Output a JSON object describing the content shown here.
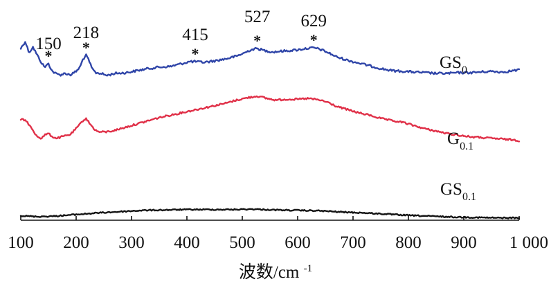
{
  "chart_data": {
    "type": "line",
    "xlabel": "波数/cm",
    "xlabel_sup": "-1",
    "xlim": [
      100,
      1000
    ],
    "grid": false,
    "x_ticks": [
      {
        "value": 100,
        "label": "100"
      },
      {
        "value": 200,
        "label": "200"
      },
      {
        "value": 300,
        "label": "300"
      },
      {
        "value": 400,
        "label": "400"
      },
      {
        "value": 500,
        "label": "500"
      },
      {
        "value": 600,
        "label": "600"
      },
      {
        "value": 700,
        "label": "700"
      },
      {
        "value": 800,
        "label": "800"
      },
      {
        "value": 900,
        "label": "900"
      },
      {
        "value": 1000,
        "label": "1 000"
      }
    ],
    "peaks": [
      {
        "x": 150,
        "label": "150",
        "star": "*"
      },
      {
        "x": 218,
        "label": "218",
        "star": "*"
      },
      {
        "x": 415,
        "label": "415",
        "star": "*"
      },
      {
        "x": 527,
        "label": "527",
        "star": "*"
      },
      {
        "x": 629,
        "label": "629",
        "star": "*"
      }
    ],
    "series": [
      {
        "label_main": "GS",
        "label_sub": "0",
        "color": "#2f45a8",
        "points": [
          [
            100,
            0.6
          ],
          [
            108,
            0.7
          ],
          [
            115,
            0.54
          ],
          [
            122,
            0.62
          ],
          [
            130,
            0.5
          ],
          [
            137,
            0.4
          ],
          [
            143,
            0.33
          ],
          [
            150,
            0.38
          ],
          [
            157,
            0.27
          ],
          [
            165,
            0.23
          ],
          [
            172,
            0.22
          ],
          [
            180,
            0.24
          ],
          [
            190,
            0.22
          ],
          [
            200,
            0.27
          ],
          [
            207,
            0.33
          ],
          [
            212,
            0.44
          ],
          [
            218,
            0.5
          ],
          [
            223,
            0.43
          ],
          [
            228,
            0.32
          ],
          [
            235,
            0.25
          ],
          [
            245,
            0.24
          ],
          [
            255,
            0.21
          ],
          [
            270,
            0.24
          ],
          [
            290,
            0.25
          ],
          [
            310,
            0.28
          ],
          [
            330,
            0.31
          ],
          [
            350,
            0.33
          ],
          [
            370,
            0.34
          ],
          [
            390,
            0.38
          ],
          [
            405,
            0.41
          ],
          [
            415,
            0.41
          ],
          [
            430,
            0.4
          ],
          [
            450,
            0.42
          ],
          [
            470,
            0.45
          ],
          [
            490,
            0.49
          ],
          [
            505,
            0.54
          ],
          [
            515,
            0.58
          ],
          [
            527,
            0.6
          ],
          [
            540,
            0.57
          ],
          [
            555,
            0.55
          ],
          [
            570,
            0.56
          ],
          [
            585,
            0.57
          ],
          [
            600,
            0.58
          ],
          [
            615,
            0.6
          ],
          [
            629,
            0.61
          ],
          [
            640,
            0.59
          ],
          [
            655,
            0.54
          ],
          [
            670,
            0.48
          ],
          [
            690,
            0.43
          ],
          [
            710,
            0.39
          ],
          [
            730,
            0.35
          ],
          [
            750,
            0.31
          ],
          [
            770,
            0.28
          ],
          [
            790,
            0.27
          ],
          [
            810,
            0.26
          ],
          [
            830,
            0.25
          ],
          [
            850,
            0.24
          ],
          [
            870,
            0.24
          ],
          [
            890,
            0.25
          ],
          [
            910,
            0.25
          ],
          [
            930,
            0.26
          ],
          [
            950,
            0.27
          ],
          [
            970,
            0.26
          ],
          [
            990,
            0.28
          ],
          [
            1000,
            0.29
          ]
        ]
      },
      {
        "label_main": "G",
        "label_sub": "0.1",
        "color": "#e03048",
        "points": [
          [
            100,
            0.46
          ],
          [
            110,
            0.44
          ],
          [
            118,
            0.36
          ],
          [
            125,
            0.28
          ],
          [
            131,
            0.24
          ],
          [
            137,
            0.22
          ],
          [
            143,
            0.26
          ],
          [
            150,
            0.28
          ],
          [
            157,
            0.24
          ],
          [
            165,
            0.22
          ],
          [
            175,
            0.24
          ],
          [
            190,
            0.27
          ],
          [
            205,
            0.38
          ],
          [
            212,
            0.44
          ],
          [
            218,
            0.47
          ],
          [
            225,
            0.4
          ],
          [
            232,
            0.34
          ],
          [
            240,
            0.3
          ],
          [
            255,
            0.3
          ],
          [
            270,
            0.32
          ],
          [
            290,
            0.36
          ],
          [
            310,
            0.4
          ],
          [
            330,
            0.44
          ],
          [
            350,
            0.48
          ],
          [
            370,
            0.51
          ],
          [
            390,
            0.54
          ],
          [
            410,
            0.57
          ],
          [
            430,
            0.6
          ],
          [
            450,
            0.63
          ],
          [
            470,
            0.66
          ],
          [
            490,
            0.7
          ],
          [
            510,
            0.73
          ],
          [
            527,
            0.75
          ],
          [
            545,
            0.72
          ],
          [
            560,
            0.7
          ],
          [
            580,
            0.71
          ],
          [
            600,
            0.71
          ],
          [
            620,
            0.72
          ],
          [
            640,
            0.7
          ],
          [
            655,
            0.67
          ],
          [
            670,
            0.62
          ],
          [
            690,
            0.58
          ],
          [
            710,
            0.54
          ],
          [
            730,
            0.51
          ],
          [
            750,
            0.47
          ],
          [
            770,
            0.44
          ],
          [
            790,
            0.42
          ],
          [
            810,
            0.38
          ],
          [
            830,
            0.34
          ],
          [
            850,
            0.31
          ],
          [
            870,
            0.28
          ],
          [
            890,
            0.26
          ],
          [
            910,
            0.24
          ],
          [
            930,
            0.23
          ],
          [
            950,
            0.22
          ],
          [
            970,
            0.21
          ],
          [
            990,
            0.2
          ],
          [
            1000,
            0.19
          ]
        ]
      },
      {
        "label_main": "GS",
        "label_sub": "0.1",
        "color": "#141414",
        "points": [
          [
            100,
            0.14
          ],
          [
            130,
            0.12
          ],
          [
            160,
            0.13
          ],
          [
            200,
            0.17
          ],
          [
            240,
            0.21
          ],
          [
            280,
            0.24
          ],
          [
            320,
            0.27
          ],
          [
            360,
            0.28
          ],
          [
            400,
            0.29
          ],
          [
            440,
            0.29
          ],
          [
            480,
            0.29
          ],
          [
            520,
            0.3
          ],
          [
            560,
            0.28
          ],
          [
            600,
            0.27
          ],
          [
            640,
            0.26
          ],
          [
            680,
            0.23
          ],
          [
            720,
            0.21
          ],
          [
            760,
            0.18
          ],
          [
            800,
            0.15
          ],
          [
            840,
            0.13
          ],
          [
            880,
            0.11
          ],
          [
            920,
            0.1
          ],
          [
            960,
            0.09
          ],
          [
            1000,
            0.09
          ]
        ]
      }
    ]
  }
}
